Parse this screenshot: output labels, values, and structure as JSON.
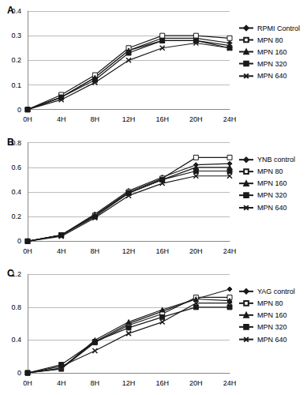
{
  "chart_data": [
    {
      "type": "line",
      "title": "A",
      "categories": [
        "0H",
        "4H",
        "8H",
        "12H",
        "16H",
        "20H",
        "24H"
      ],
      "ylim": [
        0,
        0.4
      ],
      "yticks": [
        0,
        0.1,
        0.2,
        0.3,
        0.4
      ],
      "grid": true,
      "legend": "right",
      "series": [
        {
          "name": "RPMI Control",
          "color": "#1a1a1a",
          "marker": "diamond",
          "values": [
            0,
            0.05,
            0.13,
            0.24,
            0.29,
            0.29,
            0.27
          ]
        },
        {
          "name": "MPN 80",
          "color": "#1a1a1a",
          "marker": "square_open",
          "values": [
            0,
            0.06,
            0.14,
            0.25,
            0.3,
            0.3,
            0.29
          ]
        },
        {
          "name": "MPN 160",
          "color": "#1a1a1a",
          "marker": "triangle",
          "values": [
            0,
            0.05,
            0.13,
            0.24,
            0.28,
            0.28,
            0.26
          ]
        },
        {
          "name": "MPN 320",
          "color": "#1a1a1a",
          "marker": "square",
          "values": [
            0,
            0.05,
            0.12,
            0.23,
            0.28,
            0.28,
            0.25
          ]
        },
        {
          "name": "MPN 640",
          "color": "#1a1a1a",
          "marker": "x",
          "values": [
            0,
            0.04,
            0.11,
            0.2,
            0.25,
            0.27,
            0.25
          ]
        }
      ]
    },
    {
      "type": "line",
      "title": "B",
      "categories": [
        "0H",
        "4H",
        "8H",
        "12H",
        "16H",
        "20H",
        "24H"
      ],
      "ylim": [
        0,
        0.8
      ],
      "yticks": [
        0,
        0.2,
        0.4,
        0.6,
        0.8
      ],
      "grid": true,
      "legend": "right",
      "series": [
        {
          "name": "YNB control",
          "color": "#1a1a1a",
          "marker": "diamond",
          "values": [
            0,
            0.05,
            0.22,
            0.41,
            0.52,
            0.62,
            0.63
          ]
        },
        {
          "name": "MPN 80",
          "color": "#1a1a1a",
          "marker": "square_open",
          "values": [
            0,
            0.05,
            0.21,
            0.4,
            0.51,
            0.68,
            0.68
          ]
        },
        {
          "name": "MPN 160",
          "color": "#1a1a1a",
          "marker": "triangle",
          "values": [
            0,
            0.05,
            0.21,
            0.39,
            0.5,
            0.6,
            0.6
          ]
        },
        {
          "name": "MPN 320",
          "color": "#1a1a1a",
          "marker": "square",
          "values": [
            0,
            0.05,
            0.2,
            0.39,
            0.5,
            0.57,
            0.57
          ]
        },
        {
          "name": "MPN 640",
          "color": "#1a1a1a",
          "marker": "x",
          "values": [
            0,
            0.04,
            0.19,
            0.37,
            0.47,
            0.53,
            0.53
          ]
        }
      ]
    },
    {
      "type": "line",
      "title": "C",
      "categories": [
        "0H",
        "4H",
        "8H",
        "12H",
        "16H",
        "20H",
        "24H"
      ],
      "ylim": [
        0,
        1.2
      ],
      "yticks": [
        0,
        0.4,
        0.8,
        1.2
      ],
      "grid": true,
      "legend": "right",
      "series": [
        {
          "name": "YAG control",
          "color": "#1a1a1a",
          "marker": "diamond",
          "values": [
            0,
            0.06,
            0.38,
            0.6,
            0.75,
            0.9,
            1.02
          ]
        },
        {
          "name": "MPN 80",
          "color": "#1a1a1a",
          "marker": "square_open",
          "values": [
            0,
            0.05,
            0.37,
            0.58,
            0.72,
            0.92,
            0.92
          ]
        },
        {
          "name": "MPN 160",
          "color": "#1a1a1a",
          "marker": "triangle",
          "values": [
            0,
            0.05,
            0.4,
            0.62,
            0.77,
            0.9,
            0.88
          ]
        },
        {
          "name": "MPN 320",
          "color": "#1a1a1a",
          "marker": "square",
          "values": [
            0,
            0.1,
            0.38,
            0.55,
            0.68,
            0.8,
            0.8
          ]
        },
        {
          "name": "MPN 640",
          "color": "#1a1a1a",
          "marker": "x",
          "values": [
            0,
            0.08,
            0.27,
            0.48,
            0.62,
            0.85,
            0.85
          ]
        }
      ]
    }
  ]
}
